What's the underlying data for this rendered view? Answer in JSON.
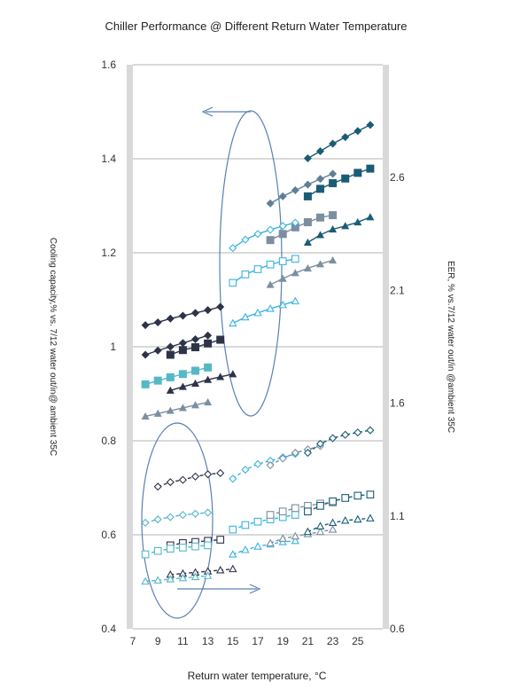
{
  "chart_data": {
    "type": "line",
    "title": "Chiller Performance @ Different Return Water Temperature",
    "xlabel": "Return water temperature, °C",
    "ylabel_left": "Cooling capacity,% vs. 7/12  water out/in@ ambient 35C",
    "ylabel_right": "EER, % vs.7/12 water out/in @ambient 35C",
    "xlim": [
      7,
      27
    ],
    "ylim_left": [
      0.4,
      1.6
    ],
    "ylim_right": [
      0.6,
      3.1
    ],
    "x_ticks": [
      "7",
      "9",
      "11",
      "13",
      "15",
      "17",
      "19",
      "21",
      "23",
      "25"
    ],
    "y_left_ticks": [
      "0.4",
      "0.6",
      "0.8",
      "1",
      "1.2",
      "1.4",
      "1.6"
    ],
    "y_right_ticks": [
      "0.6",
      "1.1",
      "1.6",
      "2.1",
      "2.6"
    ],
    "grid": "horizontal",
    "annotations": [
      "arrow pointing left from capacity ellipse",
      "arrow pointing right from EER ellipse"
    ],
    "capacity_series": [
      {
        "marker": "diamond",
        "filled": true,
        "color": "#2e3348",
        "x": [
          8,
          9,
          10,
          11,
          12,
          13,
          14
        ],
        "y": [
          1.046,
          1.052,
          1.06,
          1.066,
          1.072,
          1.078,
          1.085
        ]
      },
      {
        "marker": "diamond",
        "filled": true,
        "color": "#2e3348",
        "x": [
          8,
          9,
          10,
          11,
          12,
          13
        ],
        "y": [
          0.983,
          0.992,
          1.0,
          1.008,
          1.016,
          1.024
        ]
      },
      {
        "marker": "square",
        "filled": true,
        "color": "#2e3348",
        "x": [
          10,
          11,
          12,
          13,
          14
        ],
        "y": [
          0.983,
          0.993,
          0.999,
          1.007,
          1.015
        ]
      },
      {
        "marker": "square",
        "filled": true,
        "color": "#55b8c6",
        "x": [
          8,
          9,
          10,
          11,
          12,
          13
        ],
        "y": [
          0.92,
          0.928,
          0.935,
          0.942,
          0.949,
          0.956
        ]
      },
      {
        "marker": "triangle",
        "filled": true,
        "color": "#2e3348",
        "x": [
          10,
          11,
          12,
          13,
          14,
          15
        ],
        "y": [
          0.907,
          0.915,
          0.922,
          0.93,
          0.936,
          0.942
        ]
      },
      {
        "marker": "triangle",
        "filled": true,
        "color": "#7b8fa0",
        "x": [
          8,
          9,
          10,
          11,
          12,
          13
        ],
        "y": [
          0.852,
          0.858,
          0.864,
          0.87,
          0.876,
          0.882
        ]
      },
      {
        "marker": "diamond",
        "filled": true,
        "color": "#1a5c74",
        "x": [
          21,
          22,
          23,
          24,
          25,
          26
        ],
        "y": [
          1.401,
          1.416,
          1.432,
          1.446,
          1.459,
          1.472
        ]
      },
      {
        "marker": "diamond",
        "filled": true,
        "color": "#5e7f95",
        "x": [
          18,
          19,
          20,
          21,
          22,
          23
        ],
        "y": [
          1.305,
          1.32,
          1.333,
          1.345,
          1.357,
          1.368
        ]
      },
      {
        "marker": "square",
        "filled": true,
        "color": "#1a5c74",
        "x": [
          21,
          22,
          23,
          24,
          25,
          26
        ],
        "y": [
          1.32,
          1.336,
          1.348,
          1.358,
          1.37,
          1.379
        ]
      },
      {
        "marker": "square",
        "filled": true,
        "color": "#7b8fa0",
        "x": [
          18,
          19,
          20,
          21,
          22,
          23
        ],
        "y": [
          1.227,
          1.24,
          1.254,
          1.265,
          1.275,
          1.28
        ]
      },
      {
        "marker": "triangle",
        "filled": true,
        "color": "#1a5c74",
        "x": [
          21,
          22,
          23,
          24,
          25,
          26
        ],
        "y": [
          1.222,
          1.238,
          1.25,
          1.257,
          1.265,
          1.276
        ]
      },
      {
        "marker": "triangle",
        "filled": true,
        "color": "#7b8fa0",
        "x": [
          18,
          19,
          20,
          21,
          22,
          23
        ],
        "y": [
          1.132,
          1.145,
          1.157,
          1.167,
          1.176,
          1.184
        ]
      },
      {
        "marker": "diamond",
        "filled": false,
        "color": "#3bb4e0",
        "x": [
          15,
          16,
          17,
          18,
          19,
          20
        ],
        "y": [
          1.21,
          1.228,
          1.24,
          1.249,
          1.257,
          1.264
        ]
      },
      {
        "marker": "square",
        "filled": false,
        "color": "#3bb4e0",
        "x": [
          15,
          16,
          17,
          18,
          19,
          20
        ],
        "y": [
          1.136,
          1.154,
          1.165,
          1.175,
          1.182,
          1.187
        ]
      },
      {
        "marker": "triangle",
        "filled": false,
        "color": "#3bb4e0",
        "x": [
          15,
          16,
          17,
          18,
          19,
          20
        ],
        "y": [
          1.05,
          1.063,
          1.072,
          1.081,
          1.089,
          1.097
        ]
      }
    ],
    "eer_series": [
      {
        "marker": "diamond",
        "filled": false,
        "color": "#2e3348",
        "x": [
          9,
          10,
          11,
          12,
          13,
          14
        ],
        "y": [
          1.23,
          1.25,
          1.26,
          1.275,
          1.285,
          1.29
        ]
      },
      {
        "marker": "diamond",
        "filled": false,
        "color": "#55b8c6",
        "x": [
          8,
          9,
          10,
          11,
          12,
          13
        ],
        "y": [
          1.07,
          1.085,
          1.095,
          1.105,
          1.11,
          1.115
        ]
      },
      {
        "marker": "square",
        "filled": false,
        "color": "#2e3348",
        "x": [
          10,
          11,
          12,
          13,
          14
        ],
        "y": [
          0.97,
          0.98,
          0.985,
          0.99,
          0.995
        ]
      },
      {
        "marker": "square",
        "filled": false,
        "color": "#55b8c6",
        "x": [
          8,
          9,
          10,
          11,
          12,
          13
        ],
        "y": [
          0.93,
          0.945,
          0.955,
          0.96,
          0.965,
          0.97
        ]
      },
      {
        "marker": "triangle",
        "filled": false,
        "color": "#2e3348",
        "x": [
          10,
          11,
          12,
          13,
          14,
          15
        ],
        "y": [
          0.84,
          0.845,
          0.85,
          0.855,
          0.86,
          0.865
        ]
      },
      {
        "marker": "triangle",
        "filled": false,
        "color": "#55b8c6",
        "x": [
          8,
          9,
          10,
          11,
          12,
          13
        ],
        "y": [
          0.81,
          0.815,
          0.82,
          0.825,
          0.83,
          0.835
        ]
      },
      {
        "marker": "diamond",
        "filled": false,
        "color": "#3bb4e0",
        "x": [
          15,
          16,
          17,
          18,
          19,
          20
        ],
        "y": [
          1.265,
          1.305,
          1.33,
          1.345,
          1.36,
          1.375
        ]
      },
      {
        "marker": "diamond",
        "filled": false,
        "color": "#7b8fa0",
        "x": [
          18,
          19,
          20,
          21,
          22
        ],
        "y": [
          1.325,
          1.355,
          1.38,
          1.395,
          1.41
        ]
      },
      {
        "marker": "diamond",
        "filled": false,
        "color": "#1a5c74",
        "x": [
          21,
          22,
          23,
          24,
          25,
          26
        ],
        "y": [
          1.38,
          1.42,
          1.445,
          1.46,
          1.47,
          1.48
        ]
      },
      {
        "marker": "square",
        "filled": false,
        "color": "#3bb4e0",
        "x": [
          15,
          16,
          17,
          18,
          19,
          20
        ],
        "y": [
          1.04,
          1.06,
          1.075,
          1.085,
          1.095,
          1.105
        ]
      },
      {
        "marker": "square",
        "filled": false,
        "color": "#7b8fa0",
        "x": [
          18,
          19,
          20,
          21,
          22,
          23
        ],
        "y": [
          1.105,
          1.12,
          1.135,
          1.145,
          1.155,
          1.16
        ]
      },
      {
        "marker": "square",
        "filled": false,
        "color": "#1a5c74",
        "x": [
          21,
          22,
          23,
          24,
          25,
          26
        ],
        "y": [
          1.12,
          1.145,
          1.165,
          1.18,
          1.19,
          1.195
        ]
      },
      {
        "marker": "triangle",
        "filled": false,
        "color": "#3bb4e0",
        "x": [
          15,
          16,
          17,
          18,
          19,
          20
        ],
        "y": [
          0.93,
          0.95,
          0.965,
          0.975,
          0.985,
          0.99
        ]
      },
      {
        "marker": "triangle",
        "filled": false,
        "color": "#7b8fa0",
        "x": [
          18,
          19,
          20,
          21,
          22,
          23
        ],
        "y": [
          0.98,
          1.0,
          1.01,
          1.02,
          1.03,
          1.04
        ]
      },
      {
        "marker": "triangle",
        "filled": false,
        "color": "#1a5c74",
        "x": [
          21,
          22,
          23,
          24,
          25,
          26
        ],
        "y": [
          1.03,
          1.055,
          1.07,
          1.08,
          1.085,
          1.09
        ]
      }
    ]
  }
}
